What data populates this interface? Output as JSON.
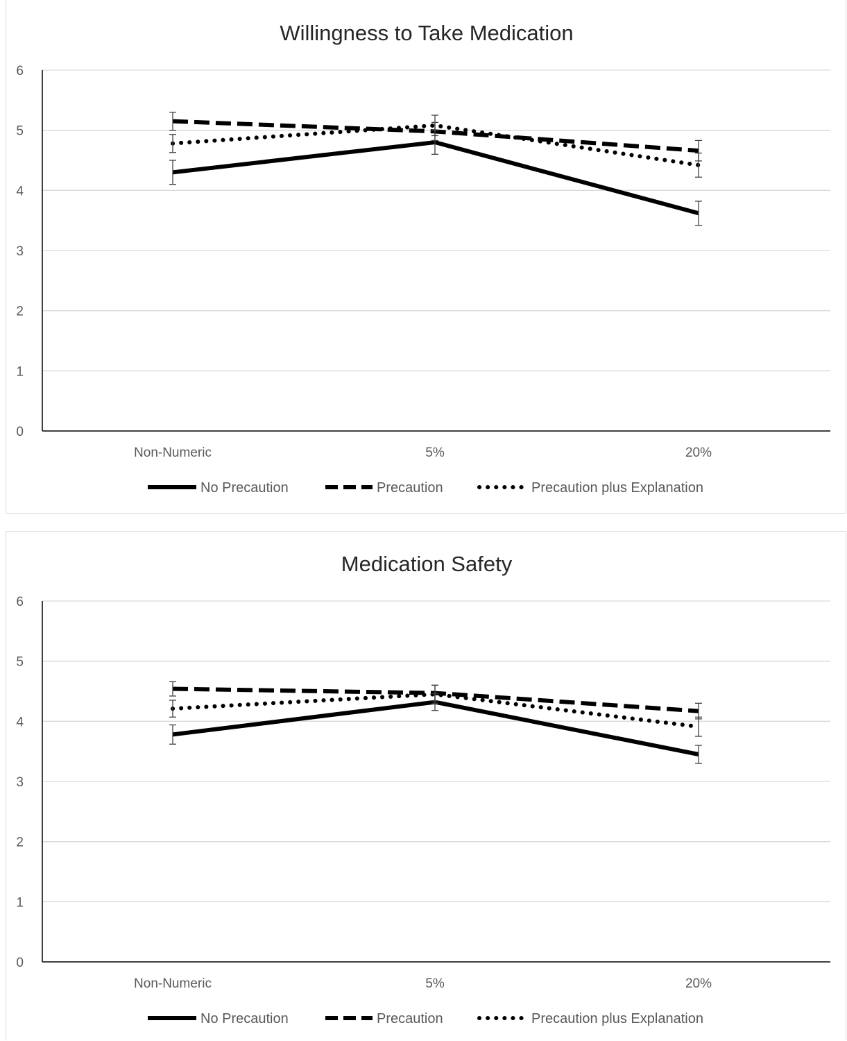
{
  "chart_data": [
    {
      "type": "line",
      "title": "Willingness to Take Medication",
      "xlabel": "",
      "ylabel": "",
      "ylim": [
        0,
        6
      ],
      "yticks": [
        0,
        1,
        2,
        3,
        4,
        5,
        6
      ],
      "grid": true,
      "legend": "bottom",
      "categories": [
        "Non-Numeric",
        "5%",
        "20%"
      ],
      "series": [
        {
          "name": "No Precaution",
          "style": "solid",
          "values": [
            4.3,
            4.8,
            3.62
          ],
          "error": [
            0.2,
            0.2,
            0.2
          ]
        },
        {
          "name": "Precaution",
          "style": "dashed",
          "values": [
            5.15,
            4.98,
            4.66
          ],
          "error": [
            0.15,
            0.15,
            0.17
          ]
        },
        {
          "name": "Precaution plus Explanation",
          "style": "dotted",
          "values": [
            4.78,
            5.08,
            4.42
          ],
          "error": [
            0.15,
            0.17,
            0.2
          ]
        }
      ]
    },
    {
      "type": "line",
      "title": "Medication Safety",
      "xlabel": "",
      "ylabel": "",
      "ylim": [
        0,
        6
      ],
      "yticks": [
        0,
        1,
        2,
        3,
        4,
        5,
        6
      ],
      "grid": true,
      "legend": "bottom",
      "categories": [
        "Non-Numeric",
        "5%",
        "20%"
      ],
      "series": [
        {
          "name": "No Precaution",
          "style": "solid",
          "values": [
            3.78,
            4.32,
            3.45
          ],
          "error": [
            0.16,
            0.14,
            0.15
          ]
        },
        {
          "name": "Precaution",
          "style": "dashed",
          "values": [
            4.54,
            4.47,
            4.17
          ],
          "error": [
            0.12,
            0.13,
            0.13
          ]
        },
        {
          "name": "Precaution plus Explanation",
          "style": "dotted",
          "values": [
            4.21,
            4.45,
            3.91
          ],
          "error": [
            0.14,
            0.15,
            0.16
          ]
        }
      ]
    }
  ],
  "colors": {
    "line": "#000000",
    "grid": "#d9d9d9",
    "axis": "#000000",
    "text": "#595959",
    "title": "#262626"
  }
}
